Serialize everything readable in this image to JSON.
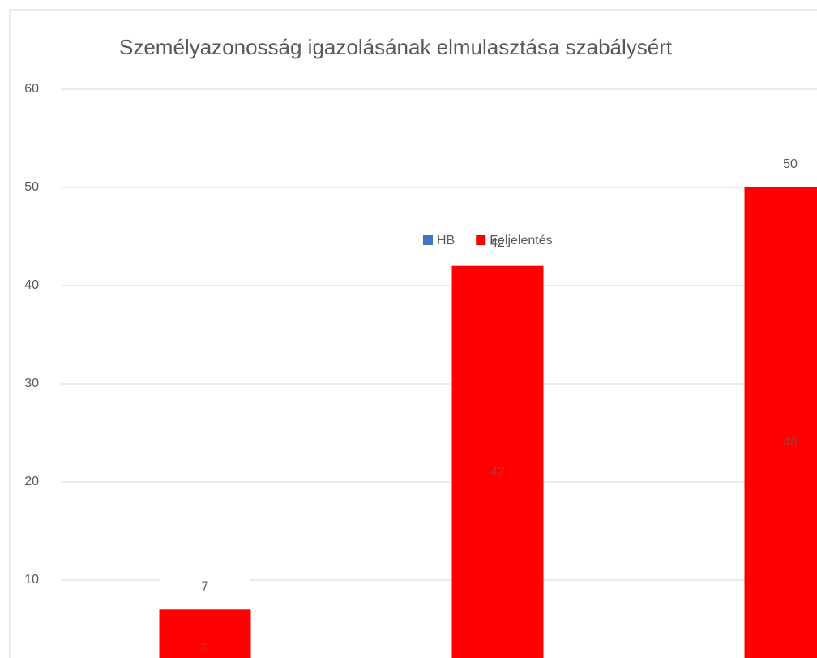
{
  "chart_data": {
    "type": "bar",
    "title": "Személyazonosság igazolásának elmulasztása szabálysért",
    "series": [
      {
        "name": "HB",
        "color": "#4472c4",
        "values": [
          6,
          42,
          48
        ]
      },
      {
        "name": "Feljelentés",
        "color": "#ff0000",
        "values": [
          7,
          42,
          50
        ]
      }
    ],
    "ylim": [
      0,
      60
    ],
    "yticks": [
      10,
      20,
      30,
      40,
      50,
      60
    ],
    "grid": true
  }
}
